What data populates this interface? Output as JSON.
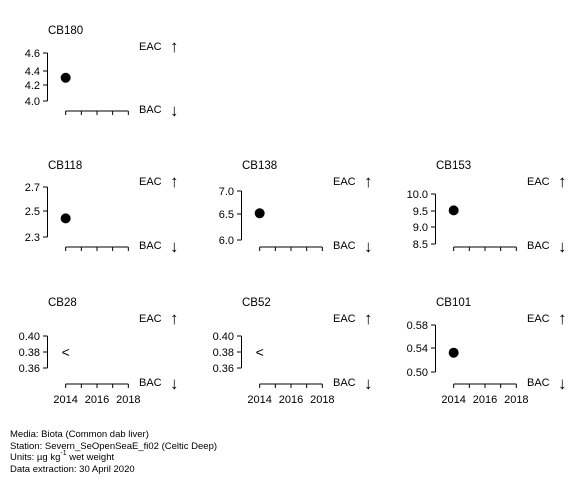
{
  "chart_data": [
    {
      "name": "CB180",
      "type": "scatter",
      "yticks": [
        "4.6",
        "4.4",
        "4.2",
        "4.0"
      ],
      "ylim": [
        3.95,
        4.7
      ],
      "x": [
        2014
      ],
      "y": [
        4.31
      ],
      "censored": [
        false
      ],
      "eac_label": "EAC",
      "bac_label": "BAC",
      "xticks": []
    },
    {
      "name": "CB118",
      "type": "scatter",
      "yticks": [
        "2.7",
        "2.5",
        "2.3"
      ],
      "ylim": [
        2.25,
        2.8
      ],
      "x": [
        2014
      ],
      "y": [
        2.47
      ],
      "censored": [
        false
      ],
      "eac_label": "EAC",
      "bac_label": "BAC",
      "xticks": []
    },
    {
      "name": "CB138",
      "type": "scatter",
      "yticks": [
        "7.0",
        "6.5",
        "6.0"
      ],
      "ylim": [
        5.9,
        7.15
      ],
      "x": [
        2014
      ],
      "y": [
        6.5
      ],
      "censored": [
        false
      ],
      "eac_label": "EAC",
      "bac_label": "BAC",
      "xticks": []
    },
    {
      "name": "CB153",
      "type": "scatter",
      "yticks": [
        "10.0",
        "9.5",
        "9.0",
        "8.5"
      ],
      "ylim": [
        8.45,
        10.2
      ],
      "x": [
        2014
      ],
      "y": [
        9.37
      ],
      "censored": [
        false
      ],
      "eac_label": "EAC",
      "bac_label": "BAC",
      "xticks": []
    },
    {
      "name": "CB28",
      "type": "scatter",
      "yticks": [
        "0.40",
        "0.38",
        "0.36"
      ],
      "ylim": [
        0.355,
        0.41
      ],
      "x": [
        2014
      ],
      "y": [
        0.38
      ],
      "censored": [
        true
      ],
      "eac_label": "EAC",
      "bac_label": "BAC",
      "xticks": [
        "2014",
        "2016",
        "2018"
      ]
    },
    {
      "name": "CB52",
      "type": "scatter",
      "yticks": [
        "0.40",
        "0.38",
        "0.36"
      ],
      "ylim": [
        0.355,
        0.41
      ],
      "x": [
        2014
      ],
      "y": [
        0.38
      ],
      "censored": [
        true
      ],
      "eac_label": "EAC",
      "bac_label": "BAC",
      "xticks": [
        "2014",
        "2016",
        "2018"
      ]
    },
    {
      "name": "CB101",
      "type": "scatter",
      "yticks": [
        "0.58",
        "0.54",
        "0.50"
      ],
      "ylim": [
        0.495,
        0.59
      ],
      "x": [
        2014
      ],
      "y": [
        0.537
      ],
      "censored": [
        false
      ],
      "eac_label": "EAC",
      "bac_label": "BAC",
      "xticks": [
        "2014",
        "2016",
        "2018"
      ]
    }
  ],
  "xrange": [
    2013,
    2019
  ],
  "censored_symbol": "<",
  "arrow_up": "↑",
  "arrow_down": "↓",
  "footer": {
    "media": "Media: Biota (Common dab liver)",
    "station": "Station: Severn_SeOpenSeaE_fi02 (Celtic Deep)",
    "units_prefix": "Units:  µg kg",
    "units_sup": "-1",
    "units_suffix": " wet weight",
    "extraction": "Data extraction: 30 April 2020"
  },
  "colors": {
    "ink": "#000000",
    "background": "#ffffff"
  }
}
